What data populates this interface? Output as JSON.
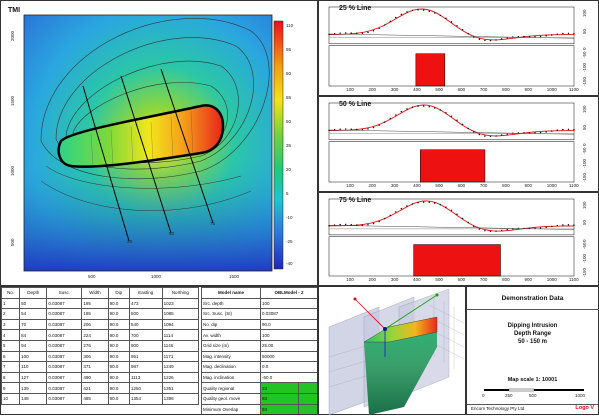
{
  "map": {
    "title": "TMI",
    "x_ticks": [
      "500",
      "1000",
      "1500"
    ],
    "y_ticks": [
      "2000",
      "1500",
      "1000",
      "500"
    ],
    "colorbar_ticks": [
      "110",
      "95",
      "80",
      "65",
      "50",
      "35",
      "20",
      "5",
      "-10",
      "-25",
      "-40"
    ],
    "line_labels": [
      "25",
      "50",
      "75"
    ]
  },
  "profiles": [
    {
      "title": "25 % Line",
      "y_top": [
        "100",
        "50",
        "0"
      ],
      "y_bottom": [
        "-50",
        "-100",
        "-150"
      ],
      "x_ticks": [
        "100",
        "200",
        "300",
        "400",
        "500",
        "600",
        "700",
        "800",
        "900",
        "1000",
        "1100"
      ],
      "block_start": 390,
      "block_end": 520
    },
    {
      "title": "50 % Line",
      "y_top": [
        "100",
        "50",
        "0"
      ],
      "y_bottom": [
        "-50",
        "-100",
        "-150"
      ],
      "x_ticks": [
        "100",
        "200",
        "300",
        "400",
        "500",
        "600",
        "700",
        "800",
        "900",
        "1000",
        "1100"
      ],
      "block_start": 410,
      "block_end": 700
    },
    {
      "title": "75 % Line",
      "y_top": [
        "100",
        "50",
        "0"
      ],
      "y_bottom": [
        "-50",
        "-100",
        "-150"
      ],
      "x_ticks": [
        "100",
        "200",
        "300",
        "400",
        "500",
        "600",
        "700",
        "800",
        "900",
        "1000",
        "1100"
      ],
      "block_start": 380,
      "block_end": 770
    }
  ],
  "table": {
    "headers": [
      "No.",
      "Depth",
      "Susc.",
      "Width",
      "Dip",
      "Easting",
      "Northing"
    ],
    "rows": [
      [
        "1",
        "50",
        "0.03087",
        "195",
        "90.0",
        "473",
        "1023"
      ],
      [
        "2",
        "54",
        "0.03087",
        "195",
        "90.0",
        "500",
        "1085"
      ],
      [
        "3",
        "70",
        "0.03087",
        "206",
        "90.0",
        "540",
        "1094"
      ],
      [
        "4",
        "84",
        "0.03087",
        "224",
        "90.0",
        "700",
        "1114"
      ],
      [
        "5",
        "94",
        "0.03087",
        "276",
        "90.0",
        "900",
        "1146"
      ],
      [
        "6",
        "100",
        "0.03087",
        "306",
        "90.0",
        "951",
        "1171"
      ],
      [
        "7",
        "110",
        "0.03087",
        "371",
        "90.0",
        "987",
        "1249"
      ],
      [
        "8",
        "127",
        "0.03087",
        "490",
        "90.0",
        "1113",
        "1226"
      ],
      [
        "9",
        "139",
        "0.03087",
        "421",
        "90.0",
        "1250",
        "1351"
      ],
      [
        "10",
        "148",
        "0.03087",
        "485",
        "90.0",
        "1354",
        "1396"
      ]
    ]
  },
  "results": {
    "header": [
      "Model name",
      "OBLModel - 2"
    ],
    "rows": [
      [
        "Src. depth",
        "100"
      ],
      [
        "Src. Susc. (SI)",
        "0.03087"
      ],
      [
        "No. dip",
        "90.0"
      ],
      [
        "Av. width",
        "100"
      ],
      [
        "Grid size (m)",
        "25.00"
      ],
      [
        "Mag. intensity",
        "50000"
      ],
      [
        "Mag. declination",
        "0.0"
      ],
      [
        "Mag. inclination",
        "-60.0"
      ]
    ],
    "quality": [
      {
        "label": "Quality regional",
        "value": "33",
        "bar": "green"
      },
      {
        "label": "Quality geol. move",
        "value": "93",
        "bar": "green"
      },
      {
        "label": "Minimum Overlap",
        "value": "93",
        "bar": "green"
      },
      {
        "label": "Quality structure",
        "value": "69",
        "bar": "red"
      },
      {
        "label": "Total Quality",
        "value": "60",
        "bar": "green"
      }
    ]
  },
  "info": {
    "title": "Demonstration Data",
    "desc": [
      "Dipping Intrusion",
      "Depth Range",
      "50 - 150 m"
    ],
    "scale": "Map scale 1: 10001",
    "scale_ticks": [
      "0",
      "250",
      "500",
      "1000"
    ],
    "company": "Encom Technology Pty Ltd",
    "logo": "Logo V"
  },
  "colors": {
    "accent_red": "#ee1111",
    "quality_green": "#22c322"
  }
}
